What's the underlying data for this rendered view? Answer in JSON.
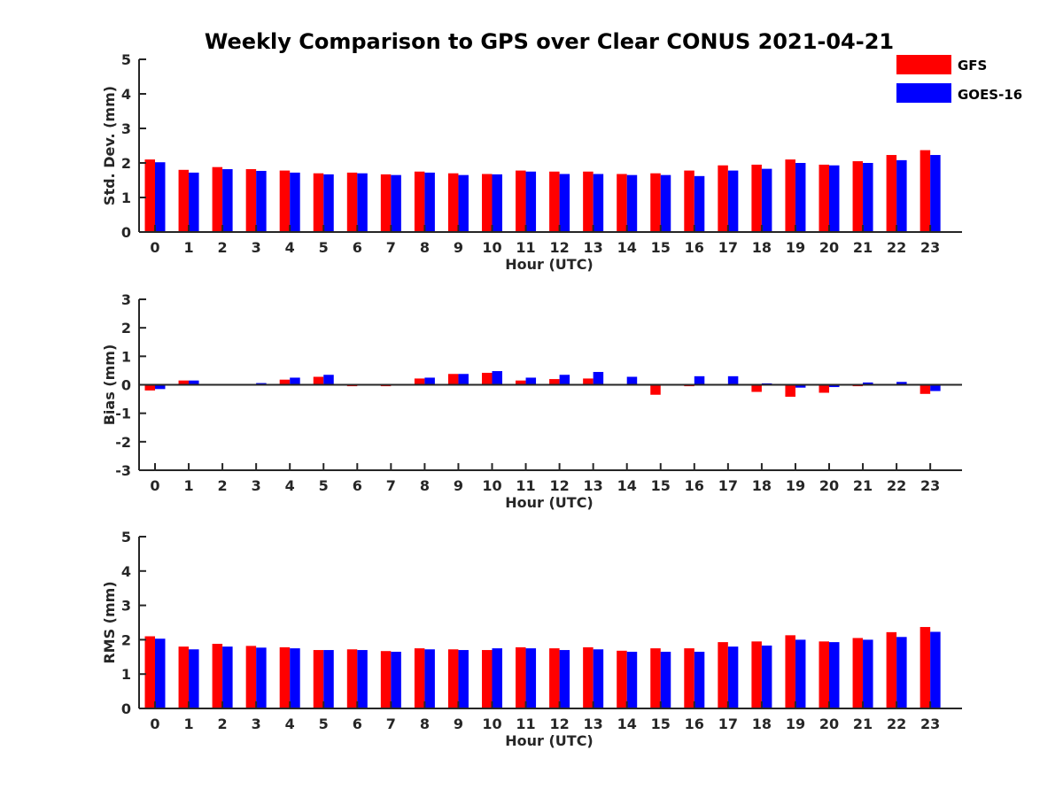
{
  "title": "Weekly Comparison to GPS over Clear CONUS 2021-04-21",
  "legend": [
    {
      "name": "GFS",
      "color": "#ff0000"
    },
    {
      "name": "GOES-16",
      "color": "#0000ff"
    }
  ],
  "chart_data": [
    {
      "type": "bar",
      "xlabel": "Hour (UTC)",
      "ylabel": "Std. Dev. (mm)",
      "ylim": [
        0,
        5
      ],
      "yticks": [
        0,
        1,
        2,
        3,
        4,
        5
      ],
      "categories": [
        "0",
        "1",
        "2",
        "3",
        "4",
        "5",
        "6",
        "7",
        "8",
        "9",
        "10",
        "11",
        "12",
        "13",
        "14",
        "15",
        "16",
        "17",
        "18",
        "19",
        "20",
        "21",
        "22",
        "23"
      ],
      "series": [
        {
          "name": "GFS",
          "color": "#ff0000",
          "values": [
            2.1,
            1.8,
            1.88,
            1.82,
            1.78,
            1.7,
            1.72,
            1.67,
            1.75,
            1.7,
            1.68,
            1.78,
            1.75,
            1.75,
            1.68,
            1.7,
            1.78,
            1.93,
            1.95,
            2.1,
            1.95,
            2.05,
            2.23,
            2.37
          ]
        },
        {
          "name": "GOES-16",
          "color": "#0000ff",
          "values": [
            2.02,
            1.72,
            1.82,
            1.77,
            1.72,
            1.67,
            1.7,
            1.65,
            1.72,
            1.65,
            1.67,
            1.75,
            1.68,
            1.68,
            1.65,
            1.65,
            1.62,
            1.78,
            1.83,
            2.0,
            1.93,
            2.0,
            2.08,
            2.23
          ]
        }
      ]
    },
    {
      "type": "bar",
      "xlabel": "Hour (UTC)",
      "ylabel": "Bias (mm)",
      "ylim": [
        -3,
        3
      ],
      "yticks": [
        -3,
        -2,
        -1,
        0,
        1,
        2,
        3
      ],
      "zero_line": true,
      "categories": [
        "0",
        "1",
        "2",
        "3",
        "4",
        "5",
        "6",
        "7",
        "8",
        "9",
        "10",
        "11",
        "12",
        "13",
        "14",
        "15",
        "16",
        "17",
        "18",
        "19",
        "20",
        "21",
        "22",
        "23"
      ],
      "series": [
        {
          "name": "GFS",
          "color": "#ff0000",
          "values": [
            -0.2,
            0.15,
            0.02,
            0.03,
            0.18,
            0.28,
            -0.05,
            -0.05,
            0.22,
            0.38,
            0.42,
            0.15,
            0.2,
            0.22,
            0.0,
            -0.35,
            -0.05,
            0.0,
            -0.25,
            -0.42,
            -0.28,
            -0.05,
            0.0,
            -0.32
          ]
        },
        {
          "name": "GOES-16",
          "color": "#0000ff",
          "values": [
            -0.15,
            0.15,
            0.02,
            0.06,
            0.25,
            0.35,
            0.0,
            0.0,
            0.25,
            0.38,
            0.48,
            0.25,
            0.35,
            0.45,
            0.28,
            0.0,
            0.3,
            0.3,
            0.05,
            -0.1,
            -0.08,
            0.08,
            0.1,
            -0.22
          ]
        }
      ]
    },
    {
      "type": "bar",
      "xlabel": "Hour (UTC)",
      "ylabel": "RMS (mm)",
      "ylim": [
        0,
        5
      ],
      "yticks": [
        0,
        1,
        2,
        3,
        4,
        5
      ],
      "categories": [
        "0",
        "1",
        "2",
        "3",
        "4",
        "5",
        "6",
        "7",
        "8",
        "9",
        "10",
        "11",
        "12",
        "13",
        "14",
        "15",
        "16",
        "17",
        "18",
        "19",
        "20",
        "21",
        "22",
        "23"
      ],
      "series": [
        {
          "name": "GFS",
          "color": "#ff0000",
          "values": [
            2.1,
            1.8,
            1.88,
            1.82,
            1.78,
            1.7,
            1.72,
            1.67,
            1.75,
            1.72,
            1.7,
            1.78,
            1.75,
            1.78,
            1.68,
            1.75,
            1.75,
            1.93,
            1.95,
            2.13,
            1.95,
            2.05,
            2.22,
            2.37
          ]
        },
        {
          "name": "GOES-16",
          "color": "#0000ff",
          "values": [
            2.03,
            1.72,
            1.8,
            1.77,
            1.75,
            1.7,
            1.7,
            1.65,
            1.72,
            1.7,
            1.75,
            1.75,
            1.7,
            1.72,
            1.65,
            1.65,
            1.65,
            1.8,
            1.83,
            2.0,
            1.93,
            2.0,
            2.08,
            2.23
          ]
        }
      ]
    }
  ]
}
